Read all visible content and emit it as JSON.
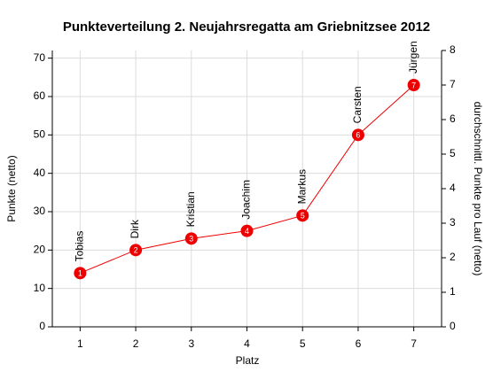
{
  "chart_data": {
    "type": "line",
    "title": "Punkteverteilung 2. Neujahrsregatta am Griebnitzsee 2012",
    "xlabel": "Platz",
    "ylabel": "Punkte (netto)",
    "y2label": "durchschnittl. Punkte pro Lauf (netto)",
    "x": [
      1,
      2,
      3,
      4,
      5,
      6,
      7
    ],
    "values": [
      14,
      20,
      23,
      25,
      29,
      50,
      63
    ],
    "point_labels": [
      "Tobias",
      "Dirk",
      "Kristian",
      "Joachim",
      "Markus",
      "Carsten",
      "Jürgen"
    ],
    "color": "#ee0000",
    "xlim": [
      0.5,
      7.5
    ],
    "xticks": [
      1,
      2,
      3,
      4,
      5,
      6,
      7
    ],
    "ylim": [
      0,
      72
    ],
    "yticks": [
      0,
      10,
      20,
      30,
      40,
      50,
      60,
      70
    ],
    "y2lim": [
      0,
      8
    ],
    "y2ticks": [
      0,
      1,
      2,
      3,
      4,
      5,
      6,
      7,
      8
    ],
    "grid": true
  }
}
